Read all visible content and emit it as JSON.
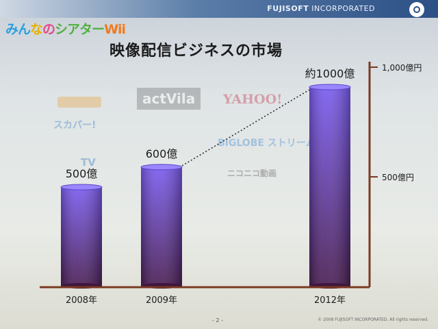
{
  "header": {
    "company_bold": "FUJISOFT",
    "company_rest": "INCORPORATED"
  },
  "brand": {
    "part1": "みん",
    "part2": "な",
    "part3": "の",
    "part4": "シアター",
    "part5": "Wii"
  },
  "title": "映像配信ビジネスの市場",
  "background_logos": [
    "actVila",
    "YAHOO!",
    "スカパー!",
    "BIGLOBE ストリーム",
    "ニコニコ動画",
    "TV"
  ],
  "footer": {
    "page": "- 2 -",
    "copyright": "© 2008 FUJISOFT INCORPORATED. All rights reserved."
  },
  "chart_data": {
    "type": "bar",
    "title": "映像配信ビジネスの市場",
    "categories": [
      "2008年",
      "2009年",
      "2012年"
    ],
    "values": [
      500,
      600,
      1000
    ],
    "data_labels": [
      "500億",
      "600億",
      "約1000億"
    ],
    "ylim": [
      0,
      1000
    ],
    "y_ticks": [
      {
        "value": 1000,
        "label": "1,000億円"
      },
      {
        "value": 500,
        "label": "500億円"
      }
    ],
    "bar_color_top": "#7a5cf0",
    "bar_color_bottom": "#4a1e52",
    "trend_line": "dotted line from 2009年 to 2012年",
    "grid": false
  }
}
